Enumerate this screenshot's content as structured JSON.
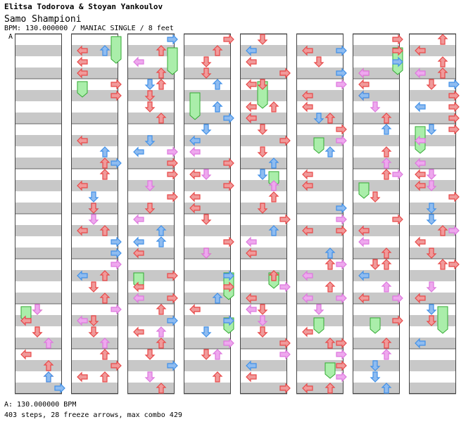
{
  "header": {
    "artist": "Elitsa Todorova & Stoyan Yankoulov",
    "title": "Samo Shampioni",
    "info": "BPM: 130.000000 / MANIAC SINGLE / 8 feet",
    "bpm_marker": "A"
  },
  "footer": {
    "bpm_line": "A: 130.000000 BPM",
    "stats_line": "403 steps, 28 freeze arrows, max combo 429"
  },
  "chart_data": {
    "type": "step-chart",
    "title": "Samo Shampioni",
    "difficulty": "MANIAC SINGLE",
    "feet": 8,
    "bpm": 130.0,
    "total_steps": 403,
    "freeze_arrows": 28,
    "max_combo": 429,
    "lanes": [
      "left",
      "down",
      "up",
      "right"
    ],
    "measures_per_column": 8,
    "columns": 8,
    "colors": {
      "quarter": "#e84848",
      "eighth": "#4090e8",
      "sixteenth": "#dd77dd",
      "freeze_fill": "#aaeeaa",
      "freeze_stroke": "#33aa33",
      "stripe": "#c8c8c8"
    }
  }
}
